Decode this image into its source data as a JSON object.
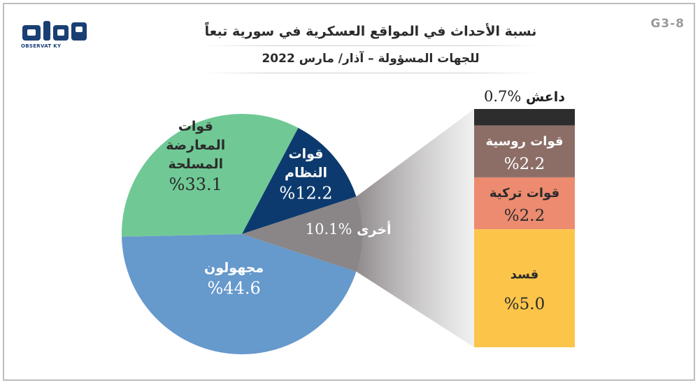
{
  "header": {
    "title_line1": "نسبة الأحداث في المواقع العسكرية في سورية تبعاً",
    "title_line2": "للجهات المسؤولة – آذار/ مارس 2022",
    "figure_code": "G3-8",
    "logo_label": "OBSERVAT KY"
  },
  "chart_data": {
    "type": "pie",
    "title": "",
    "slices": [
      {
        "label": "مجهولون",
        "value": 44.6,
        "value_text": "%44.6",
        "color": "#6699cc"
      },
      {
        "label": "قوات المعارضة المسلحة",
        "label_lines": [
          "قوات",
          "المعارضة",
          "المسلحة"
        ],
        "value": 33.1,
        "value_text": "%33.1",
        "color": "#70c995"
      },
      {
        "label": "قوات النظام",
        "label_lines": [
          "قوات",
          "النظام"
        ],
        "value": 12.2,
        "value_text": "%12.2",
        "color": "#0c3a6e"
      },
      {
        "label": "أخرى",
        "value": 10.1,
        "value_text": "%10.1",
        "color": "#8a8586"
      }
    ],
    "breakdown_of": "أخرى",
    "breakdown": [
      {
        "label": "داعش",
        "value": 0.7,
        "value_text": "%0.7",
        "color": "#2d2d2d"
      },
      {
        "label": "قوات روسية",
        "value": 2.2,
        "value_text": "%2.2",
        "color": "#8c6e67"
      },
      {
        "label": "قوات تركية",
        "value": 2.2,
        "value_text": "%2.2",
        "color": "#ec8b70"
      },
      {
        "label": "قسد",
        "value": 5.0,
        "value_text": "%5.0",
        "color": "#fcc54a"
      }
    ]
  }
}
